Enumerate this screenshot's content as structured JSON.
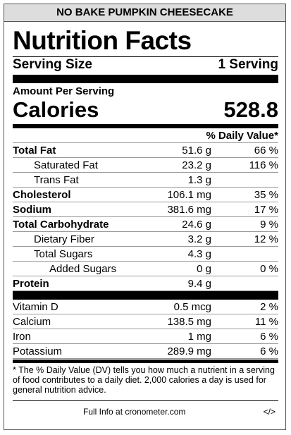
{
  "header": {
    "title": "NO BAKE PUMPKIN CHEESECAKE"
  },
  "label": {
    "title": "Nutrition Facts",
    "serving_size_label": "Serving Size",
    "serving_size": "1 Serving",
    "amount_per_serving": "Amount Per Serving",
    "calories_label": "Calories",
    "calories": "528.8",
    "daily_value_header": "% Daily Value*"
  },
  "nutrients": [
    {
      "name": "Total Fat",
      "amount": "51.6 g",
      "dv": "66 %"
    },
    {
      "name": "Saturated Fat",
      "amount": "23.2 g",
      "dv": "116 %"
    },
    {
      "name": "Trans Fat",
      "amount": "1.3 g"
    },
    {
      "name": "Cholesterol",
      "amount": "106.1 mg",
      "dv": "35 %"
    },
    {
      "name": "Sodium",
      "amount": "381.6 mg",
      "dv": "17 %"
    },
    {
      "name": "Total Carbohydrate",
      "amount": "24.6 g",
      "dv": "9 %"
    },
    {
      "name": "Dietary Fiber",
      "amount": "3.2 g",
      "dv": "12 %"
    },
    {
      "name": "Total Sugars",
      "amount": "4.3 g"
    },
    {
      "name": "Added Sugars",
      "amount": "0 g",
      "dv": "0 %"
    },
    {
      "name": "Protein",
      "amount": "9.4 g"
    }
  ],
  "vitamins": [
    {
      "name": "Vitamin D",
      "amount": "0.5 mcg",
      "dv": "2 %"
    },
    {
      "name": "Calcium",
      "amount": "138.5 mg",
      "dv": "11 %"
    },
    {
      "name": "Iron",
      "amount": "1 mg",
      "dv": "6 %"
    },
    {
      "name": "Potassium",
      "amount": "289.9 mg",
      "dv": "6 %"
    }
  ],
  "footnote": "* The % Daily Value (DV) tells you how much a nutrient in a serving of food contributes to a daily diet. 2,000 calories a day is used for general nutrition advice.",
  "footer": {
    "link": "Full Info at cronometer.com",
    "embed": "</>"
  }
}
